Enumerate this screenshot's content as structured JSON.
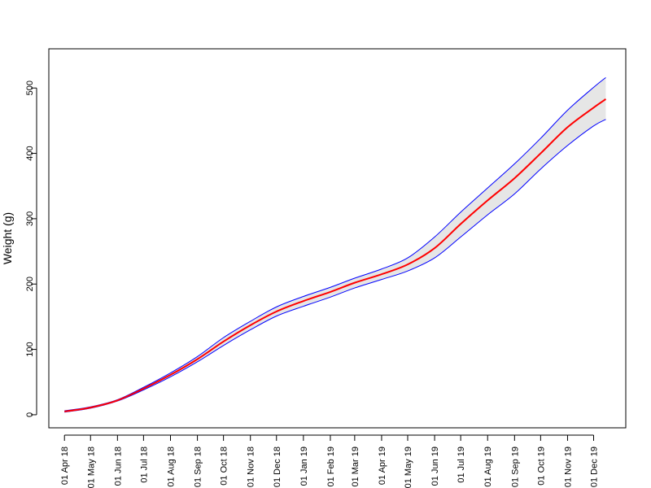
{
  "chart_data": {
    "type": "line",
    "title": "",
    "xlabel": "",
    "ylabel": "Weight (g)",
    "ylim": [
      -20,
      560
    ],
    "yticks": [
      0,
      100,
      200,
      300,
      400,
      500
    ],
    "x_tick_labels": [
      "01 Apr 18",
      "01 May 18",
      "01 Jun 18",
      "01 Jul 18",
      "01 Aug 18",
      "01 Sep 18",
      "01 Oct 18",
      "01 Nov 18",
      "01 Dec 18",
      "01 Jan 19",
      "01 Feb 19",
      "01 Mar 19",
      "01 Apr 19",
      "01 May 19",
      "01 Jun 19",
      "01 Jul 19",
      "01 Aug 19",
      "01 Sep 19",
      "01 Oct 19",
      "01 Nov 19",
      "01 Dec 19"
    ],
    "x": [
      "2018-04-01",
      "2018-05-01",
      "2018-06-01",
      "2018-07-01",
      "2018-08-01",
      "2018-09-01",
      "2018-10-01",
      "2018-11-01",
      "2018-12-01",
      "2019-01-01",
      "2019-02-01",
      "2019-03-01",
      "2019-04-01",
      "2019-05-01",
      "2019-06-01",
      "2019-07-01",
      "2019-08-01",
      "2019-09-01",
      "2019-10-01",
      "2019-11-01",
      "2019-12-01",
      "2019-12-15"
    ],
    "xlim": [
      "2018-03-14",
      "2020-01-07"
    ],
    "series": [
      {
        "values": [
          5,
          11,
          22,
          40,
          61,
          85,
          112,
          137,
          158,
          174,
          188,
          202,
          215,
          230,
          255,
          292,
          328,
          362,
          400,
          440,
          470,
          483
        ]
      },
      {
        "values": [
          6,
          12,
          23,
          42,
          64,
          89,
          118,
          143,
          165,
          181,
          195,
          209,
          223,
          240,
          272,
          310,
          347,
          384,
          423,
          466,
          501,
          516
        ]
      },
      {
        "values": [
          4,
          10,
          21,
          38,
          58,
          81,
          106,
          130,
          151,
          166,
          180,
          194,
          207,
          220,
          240,
          272,
          306,
          338,
          376,
          412,
          442,
          452
        ]
      }
    ],
    "colors": {
      "mean": "#ff0000",
      "bounds": "#0000ff",
      "band": "#e6e6e6"
    },
    "grid": false,
    "legend": "none"
  }
}
